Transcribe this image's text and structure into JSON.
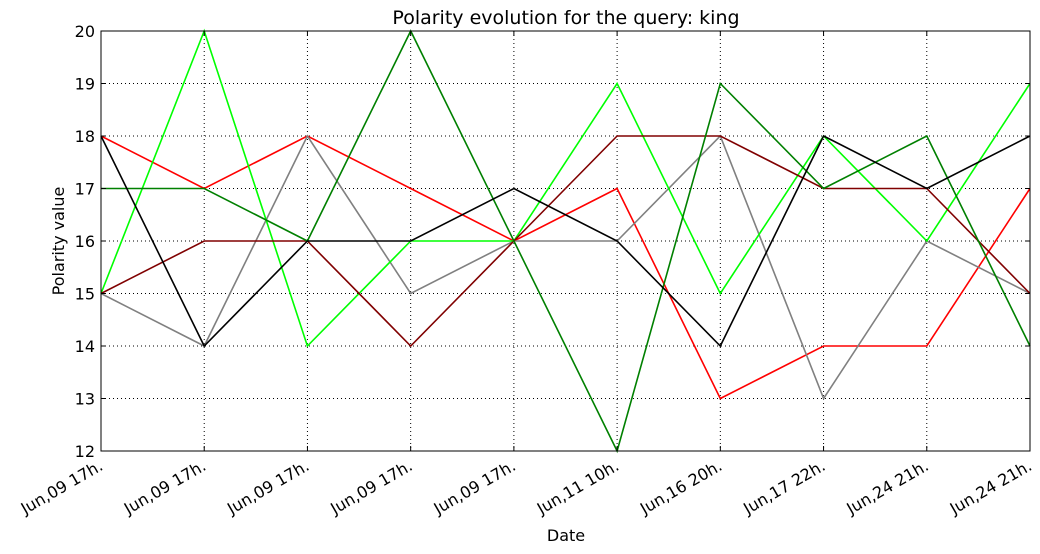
{
  "chart_data": {
    "type": "line",
    "title": "Polarity evolution for the query: king",
    "xlabel": "Date",
    "ylabel": "Polarity value",
    "categories": [
      "Jun,09 17h.",
      "Jun,09 17h.",
      "Jun,09 17h.",
      "Jun,09 17h.",
      "Jun,09 17h.",
      "Jun,11 10h.",
      "Jun,16 20h.",
      "Jun,17 22h.",
      "Jun,24 21h.",
      "Jun,24 21h."
    ],
    "yticks": [
      "12",
      "13",
      "14",
      "15",
      "16",
      "17",
      "18",
      "19",
      "20"
    ],
    "ylim": [
      12,
      20
    ],
    "grid": true,
    "series": [
      {
        "color": "#ff0000",
        "values": [
          18,
          17,
          18,
          17,
          16,
          17,
          13,
          14,
          14,
          17
        ]
      },
      {
        "color": "#808080",
        "values": [
          15,
          14,
          18,
          15,
          16,
          16,
          18,
          13,
          16,
          15
        ]
      },
      {
        "color": "#00ff00",
        "values": [
          15,
          20,
          14,
          16,
          16,
          19,
          15,
          18,
          16,
          19
        ]
      },
      {
        "color": "#800000",
        "values": [
          15,
          16,
          16,
          14,
          16,
          18,
          18,
          17,
          17,
          15
        ]
      },
      {
        "color": "#008000",
        "values": [
          17,
          17,
          16,
          20,
          16,
          12,
          19,
          17,
          18,
          14
        ]
      },
      {
        "color": "#000000",
        "values": [
          18,
          14,
          16,
          16,
          17,
          16,
          14,
          18,
          17,
          18
        ]
      }
    ]
  }
}
